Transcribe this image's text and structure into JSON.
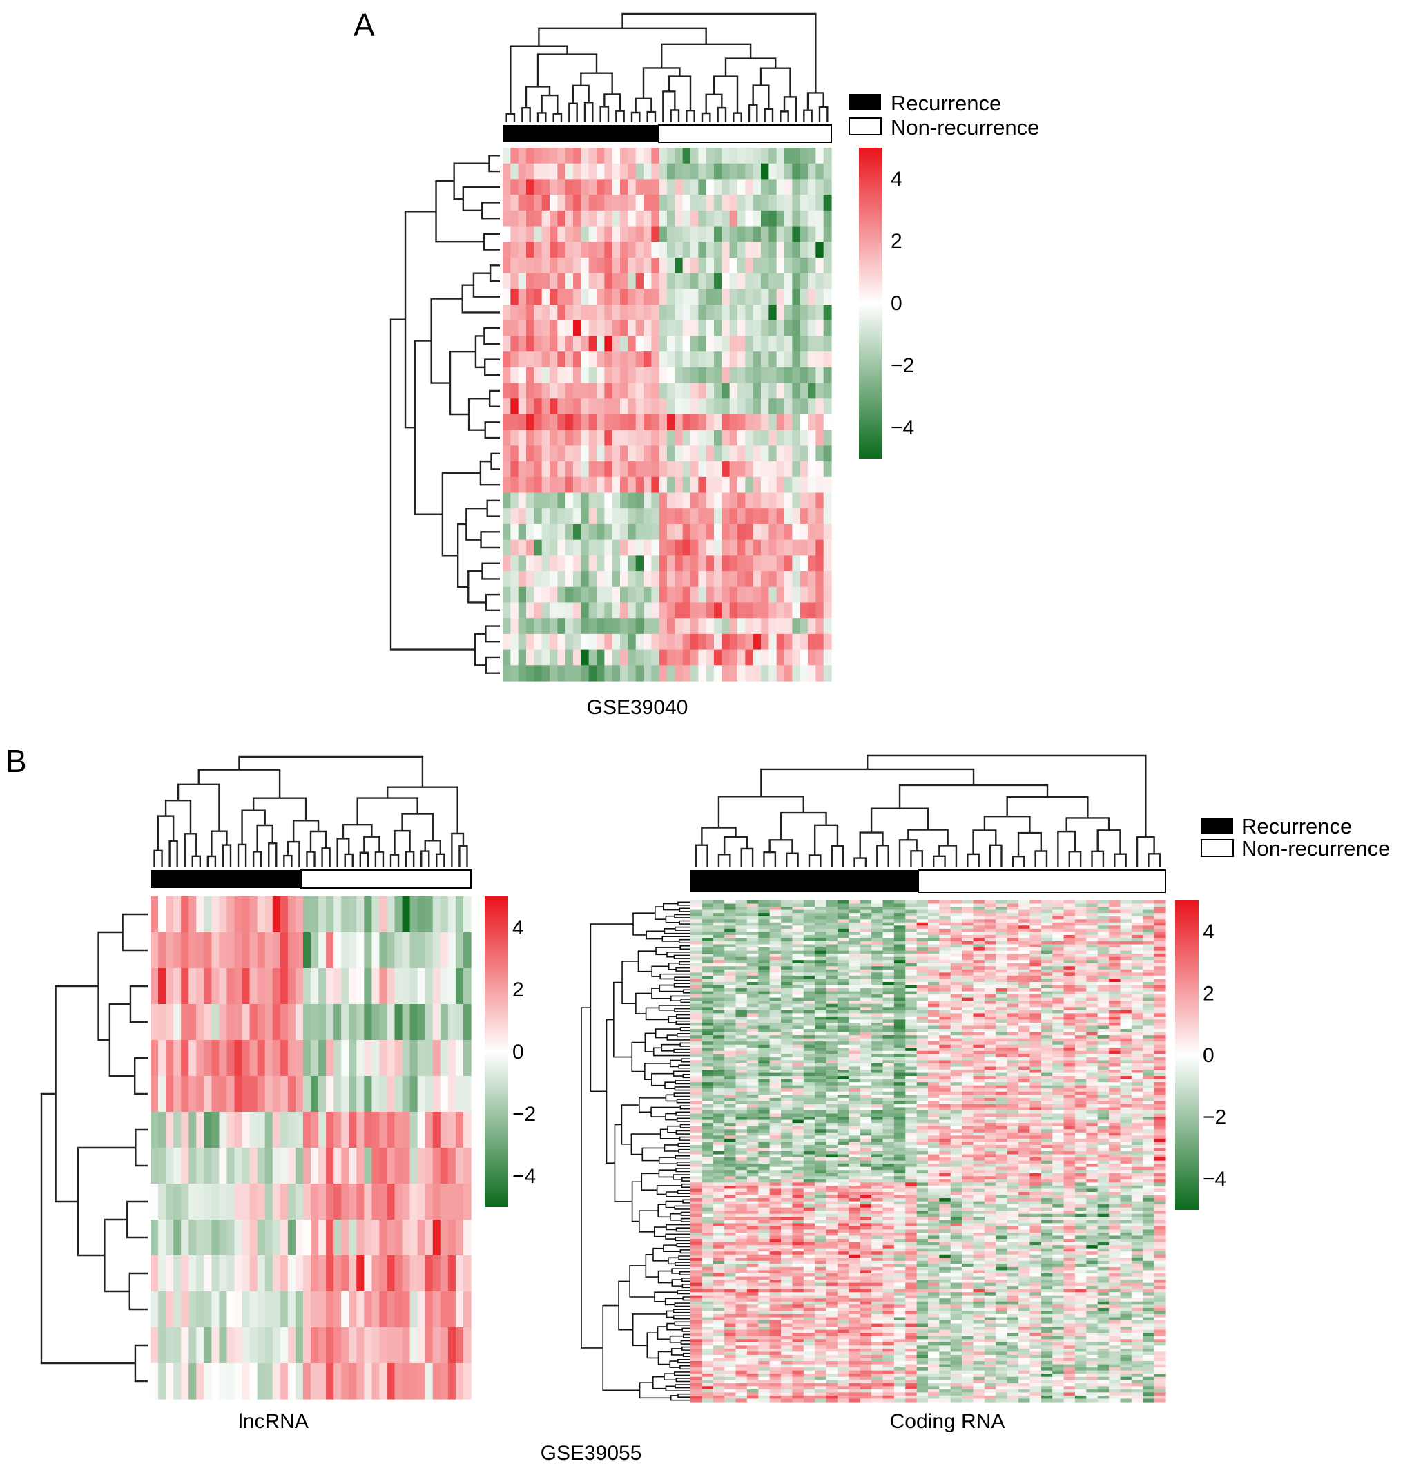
{
  "figure": {
    "panel_a_label": "A",
    "panel_b_label": "B",
    "dataset_a": "GSE39040",
    "dataset_b": "GSE39055"
  },
  "legend": {
    "recurrence": "Recurrence",
    "non_recurrence": "Non-recurrence",
    "recurrence_color": "#000000",
    "non_recurrence_color": "#ffffff"
  },
  "colorscale": {
    "low_color": "#0b6b1c",
    "mid_color": "#ffffff",
    "high_color": "#e8141b",
    "range": [
      -5,
      5
    ]
  },
  "chart_data": [
    {
      "type": "heatmap",
      "title": "GSE39040",
      "group_labels": [
        "Recurrence",
        "Non-recurrence"
      ],
      "n_samples": 42,
      "n_recurrence": 20,
      "n_nonrecurrence": 22,
      "n_rows": 34,
      "colorbar_ticks": [
        "4",
        "2",
        "0",
        "−2",
        "−4"
      ],
      "colorbar_values": [
        4,
        2,
        0,
        -2,
        -4
      ],
      "row_clusters": [
        {
          "rows": 17,
          "recurrence_mean": 1.4,
          "nonrecurrence_mean": -0.8
        },
        {
          "rows": 5,
          "recurrence_mean": 1.6,
          "nonrecurrence_mean": 0.2
        },
        {
          "rows": 8,
          "recurrence_mean": -0.6,
          "nonrecurrence_mean": 1.3
        },
        {
          "rows": 4,
          "recurrence_mean": -0.5,
          "nonrecurrence_mean": 1.6
        }
      ],
      "row_dendrogram": true,
      "column_dendrogram": true
    },
    {
      "type": "heatmap",
      "title": "lncRNA",
      "xlabel": "lncRNA",
      "n_samples": 42,
      "n_recurrence": 20,
      "n_nonrecurrence": 22,
      "n_rows": 14,
      "colorbar_ticks": [
        "4",
        "2",
        "0",
        "−2",
        "−4"
      ],
      "colorbar_values": [
        4,
        2,
        0,
        -2,
        -4
      ],
      "row_clusters": [
        {
          "rows": 6,
          "recurrence_mean": 1.6,
          "nonrecurrence_mean": -0.9
        },
        {
          "rows": 8,
          "recurrence_mean": -0.5,
          "nonrecurrence_mean": 1.5
        }
      ],
      "row_dendrogram": true,
      "column_dendrogram": true
    },
    {
      "type": "heatmap",
      "title": "Coding RNA",
      "xlabel": "Coding RNA",
      "n_samples": 42,
      "n_recurrence": 20,
      "n_nonrecurrence": 22,
      "n_rows": 160,
      "colorbar_ticks": [
        "4",
        "2",
        "0",
        "−2",
        "−4"
      ],
      "colorbar_values": [
        4,
        2,
        0,
        -2,
        -4
      ],
      "row_clusters": [
        {
          "rows": 90,
          "recurrence_mean": -1.1,
          "nonrecurrence_mean": 0.6
        },
        {
          "rows": 70,
          "recurrence_mean": 1.0,
          "nonrecurrence_mean": -0.4
        }
      ],
      "row_dendrogram": true,
      "column_dendrogram": true
    }
  ]
}
